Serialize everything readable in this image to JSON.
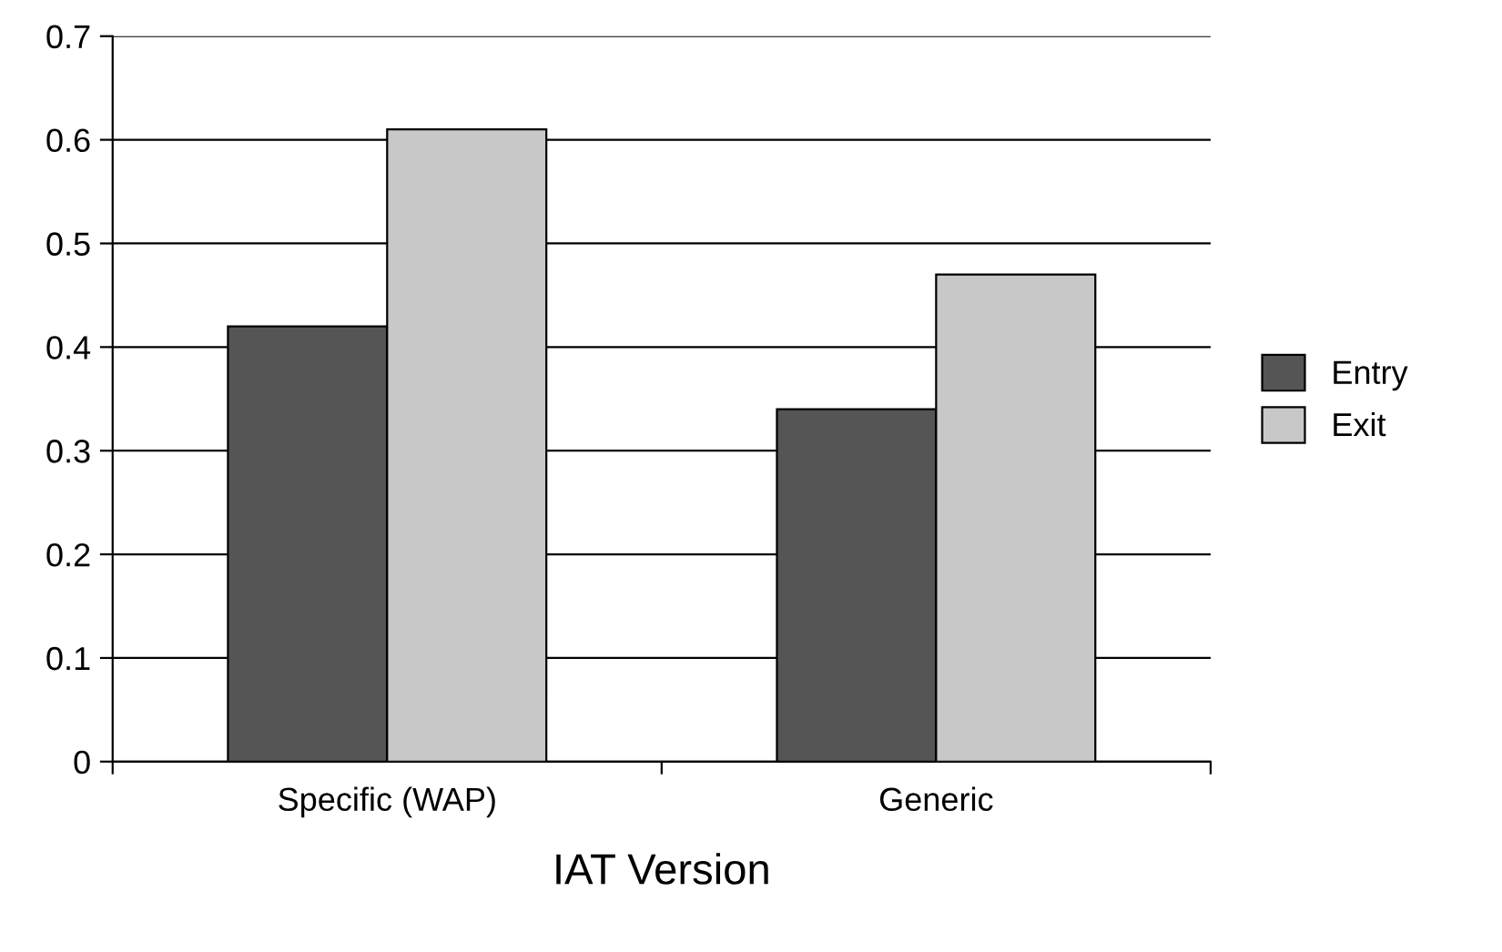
{
  "chart_data": {
    "type": "bar",
    "xlabel": "IAT Version",
    "categories": [
      "Specific (WAP)",
      "Generic"
    ],
    "series": [
      {
        "name": "Entry",
        "color": "#555555",
        "values": [
          0.42,
          0.34
        ]
      },
      {
        "name": "Exit",
        "color": "#c8c8c8",
        "values": [
          0.61,
          0.47
        ]
      }
    ],
    "ylim": [
      0,
      0.7
    ],
    "yticks": [
      {
        "value": 0,
        "label": "0"
      },
      0.1,
      0.2,
      0.3,
      0.4,
      0.5,
      0.6,
      0.7
    ],
    "grid": "y",
    "legend": "right"
  }
}
